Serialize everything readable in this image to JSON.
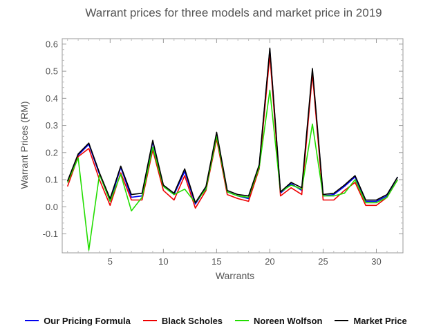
{
  "chart_data": {
    "type": "line",
    "title": "Warrant prices for three models and market price in 2019",
    "xlabel": "Warrants",
    "ylabel": "Warrant Prices (RM)",
    "xlim": [
      0.5,
      32.5
    ],
    "ylim": [
      -0.17,
      0.62
    ],
    "x_ticks": [
      5,
      10,
      15,
      20,
      25,
      30
    ],
    "y_ticks": [
      -0.1,
      0.0,
      0.1,
      0.2,
      0.3,
      0.4,
      0.5,
      0.6
    ],
    "y_tick_labels": [
      "-0.1",
      "0.0",
      "0.1",
      "0.2",
      "0.3",
      "0.4",
      "0.5",
      "0.6"
    ],
    "grid": false,
    "legend_position": "bottom",
    "x": [
      1,
      2,
      3,
      4,
      5,
      6,
      7,
      8,
      9,
      10,
      11,
      12,
      13,
      14,
      15,
      16,
      17,
      18,
      19,
      20,
      21,
      22,
      23,
      24,
      25,
      26,
      27,
      28,
      29,
      30,
      31,
      32
    ],
    "series": [
      {
        "name": "Our Pricing Formula",
        "color": "#0000ee",
        "values": [
          0.09,
          0.19,
          0.23,
          0.12,
          0.02,
          0.145,
          0.035,
          0.04,
          0.24,
          0.075,
          0.045,
          0.13,
          0.01,
          0.07,
          0.27,
          0.055,
          0.04,
          0.03,
          0.15,
          0.58,
          0.05,
          0.085,
          0.06,
          0.5,
          0.04,
          0.045,
          0.075,
          0.11,
          0.02,
          0.02,
          0.04,
          0.11
        ]
      },
      {
        "name": "Black Scholes",
        "color": "#ee0000",
        "values": [
          0.075,
          0.185,
          0.215,
          0.1,
          0.005,
          0.125,
          0.025,
          0.025,
          0.21,
          0.06,
          0.025,
          0.115,
          -0.005,
          0.06,
          0.25,
          0.045,
          0.03,
          0.02,
          0.14,
          0.56,
          0.04,
          0.07,
          0.045,
          0.49,
          0.025,
          0.025,
          0.06,
          0.09,
          0.005,
          0.005,
          0.035,
          0.1
        ]
      },
      {
        "name": "Noreen Wolfson",
        "color": "#22dd00",
        "values": [
          0.09,
          0.18,
          -0.16,
          0.12,
          0.02,
          0.12,
          -0.015,
          0.035,
          0.22,
          0.075,
          0.045,
          0.065,
          0.015,
          0.065,
          0.26,
          0.055,
          0.04,
          0.035,
          0.145,
          0.43,
          0.055,
          0.08,
          0.065,
          0.305,
          0.04,
          0.04,
          0.05,
          0.1,
          0.015,
          0.015,
          0.035,
          0.1
        ]
      },
      {
        "name": "Market Price",
        "color": "#000000",
        "values": [
          0.095,
          0.195,
          0.235,
          0.125,
          0.03,
          0.15,
          0.045,
          0.05,
          0.245,
          0.08,
          0.05,
          0.14,
          0.015,
          0.075,
          0.275,
          0.06,
          0.045,
          0.04,
          0.155,
          0.585,
          0.055,
          0.09,
          0.07,
          0.51,
          0.045,
          0.05,
          0.08,
          0.115,
          0.025,
          0.025,
          0.045,
          0.11
        ]
      }
    ]
  }
}
